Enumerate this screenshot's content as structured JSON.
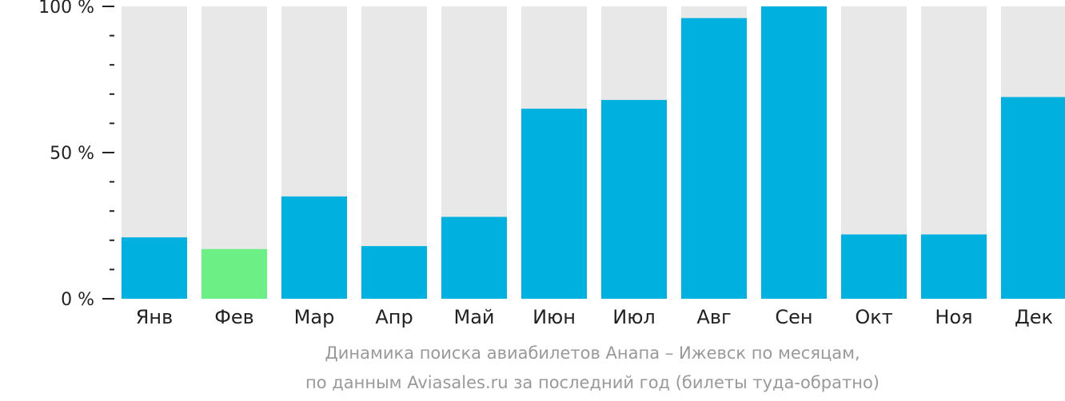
{
  "chart_data": {
    "type": "bar",
    "categories": [
      "Янв",
      "Фев",
      "Мар",
      "Апр",
      "Май",
      "Июн",
      "Июл",
      "Авг",
      "Сен",
      "Окт",
      "Ноя",
      "Дек"
    ],
    "values": [
      21,
      17,
      35,
      18,
      28,
      65,
      68,
      96,
      100,
      22,
      22,
      69
    ],
    "highlight_index": 1,
    "ylim": [
      0,
      100
    ],
    "yticks": [
      {
        "value": 0,
        "label": "0 %"
      },
      {
        "value": 50,
        "label": "50 %"
      },
      {
        "value": 100,
        "label": "100 %"
      }
    ],
    "minor_tick_step": 10,
    "colors": {
      "bar": "#00b0de",
      "highlight": "#6cf086",
      "background_bar": "#e8e8e8",
      "axis": "#222222"
    }
  },
  "caption": {
    "line1": "Динамика поиска авиабилетов Анапа – Ижевск по месяцам,",
    "line2": "по данным Aviasales.ru за последний год (билеты туда-обратно)"
  }
}
